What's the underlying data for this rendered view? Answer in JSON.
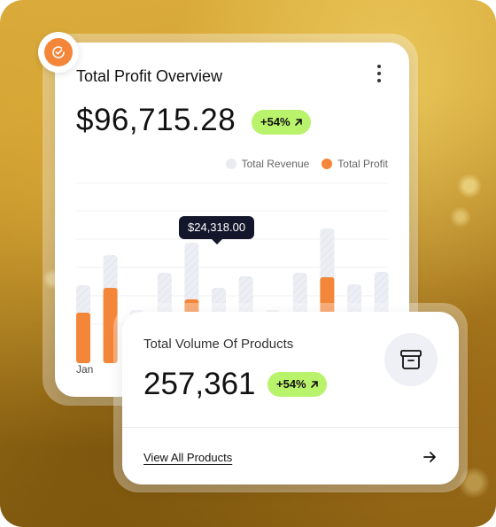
{
  "profit_card": {
    "title": "Total Profit Overview",
    "amount": "$96,715.28",
    "change": "+54%",
    "legend": [
      {
        "label": "Total Revenue",
        "color": "#e9ebf1"
      },
      {
        "label": "Total Profit",
        "color": "#f4863a"
      }
    ],
    "tooltip": "$24,318.00",
    "first_month_label": "Jan"
  },
  "chart_data": {
    "type": "bar",
    "y_axis_labels_shown": false,
    "series": [
      {
        "name": "Total Revenue",
        "values": [
          78,
          112,
          50,
          92,
          126,
          75,
          88,
          50,
          92,
          142,
          79,
          93
        ]
      },
      {
        "name": "Total Profit",
        "values": [
          47,
          75,
          0,
          14,
          62,
          23,
          35,
          0,
          14,
          87,
          0,
          14
        ]
      }
    ],
    "highlight_tooltip": "$24,318.00",
    "x_label_first": "Jan"
  },
  "products_card": {
    "title": "Total Volume Of Products",
    "value": "257,361",
    "change": "+54%",
    "link_label": "View All Products"
  },
  "colors": {
    "accent_orange": "#f4863a",
    "pill_green": "#b9f26b",
    "tooltip_bg": "#14162b"
  },
  "icons": {
    "badge": "check-circle-icon",
    "menu": "kebab-menu-icon",
    "trend": "arrow-up-right-icon",
    "box": "archive-box-icon",
    "link_arrow": "arrow-right-icon"
  }
}
